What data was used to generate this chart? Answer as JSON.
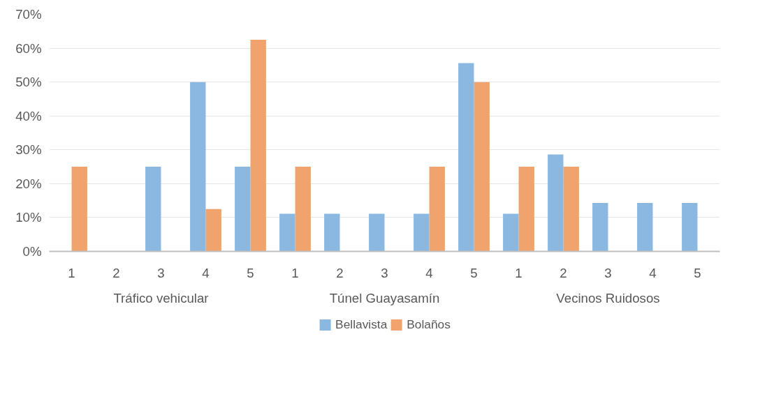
{
  "chart_data": {
    "type": "bar",
    "categories": [
      "1",
      "2",
      "3",
      "4",
      "5",
      "1",
      "2",
      "3",
      "4",
      "5",
      "1",
      "2",
      "3",
      "4",
      "5"
    ],
    "annotations": [
      "Tráfico vehicular",
      "Túnel Guayasamín",
      "Vecinos Ruidosos"
    ],
    "series": [
      {
        "name": "Bellavista",
        "color": "#8bb8e1",
        "values": [
          0,
          0,
          25,
          50,
          25,
          11.1,
          11.1,
          11.1,
          11.1,
          55.6,
          11.1,
          28.6,
          14.3,
          14.3,
          14.3
        ]
      },
      {
        "name": "Bolaños",
        "color": "#f0a36c",
        "values": [
          25,
          0,
          0,
          12.5,
          62.5,
          25,
          0,
          0,
          25,
          50,
          25,
          25,
          0,
          0,
          0
        ]
      }
    ],
    "ylim": [
      0,
      70
    ],
    "yticks": [
      {
        "value": 0,
        "label": "0%"
      },
      {
        "value": 10,
        "label": "10%"
      },
      {
        "value": 20,
        "label": "20%"
      },
      {
        "value": 30,
        "label": "30%"
      },
      {
        "value": 40,
        "label": "40%"
      },
      {
        "value": 50,
        "label": "50%"
      },
      {
        "value": 60,
        "label": "60%"
      },
      {
        "value": 70,
        "label": "70%"
      }
    ],
    "grid": "y",
    "legend": "bottom"
  }
}
